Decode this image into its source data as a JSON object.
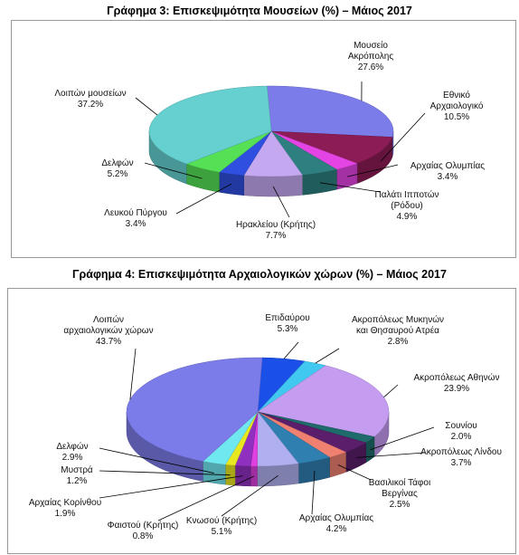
{
  "chart_data": [
    {
      "type": "pie",
      "title": "Γράφημα 3: Επισκεψιμότητα Μουσείων (%) – Μάιος  2017",
      "categories": [
        "Μουσείο\nΑκρόπολης",
        "Εθνικό\nΑρχαιολογικό",
        "Αρχαίας Ολυμπίας",
        "Παλάτι Ιπποτών\n(Ρόδου)",
        "Ηρακλείου (Κρήτης)",
        "Λευκού Πύργου",
        "Δελφών",
        "Λοιπών μουσείων"
      ],
      "values": [
        27.6,
        10.5,
        3.4,
        4.9,
        7.7,
        3.4,
        5.2,
        37.2
      ],
      "value_labels": [
        "27.6%",
        "10.5%",
        "3.4%",
        "4.9%",
        "7.7%",
        "3.4%",
        "5.2%",
        "37.2%"
      ],
      "colors": [
        "#7b7bea",
        "#8b1c55",
        "#e444e4",
        "#2e8080",
        "#c4a8f0",
        "#2f4fe0",
        "#55e055",
        "#66d0d0"
      ]
    },
    {
      "type": "pie",
      "title": "Γράφημα 4: Επισκεψιμότητα Αρχαιολογικών χώρων (%) – Μάιος 2017",
      "categories": [
        "Επιδαύρου",
        "Ακροπόλεως Μυκηνών\nκαι Θησαυρού Ατρέα",
        "Ακροπόλεως Αθηνών",
        "Σουνίου",
        "Ακροπόλεως Λίνδου",
        "Βασιλικοί Τάφοι\nΒεργίνας",
        "Αρχαίας Ολυμπίας",
        "Κνωσού (Κρήτης)",
        "Φαιστού (Κρήτης)",
        "Αρχαίας Κορίνθου",
        "Μυστρά",
        "Δελφών",
        "Λοιπών\nαρχαιολογικών χώρων"
      ],
      "values": [
        5.3,
        2.8,
        23.9,
        2.0,
        3.7,
        2.5,
        4.2,
        5.1,
        0.8,
        1.9,
        1.2,
        2.9,
        43.7
      ],
      "value_labels": [
        "5.3%",
        "2.8%",
        "23.9%",
        "2.0%",
        "3.7%",
        "2.5%",
        "4.2%",
        "5.1%",
        "0.8%",
        "1.9%",
        "1.2%",
        "2.9%",
        "43.7%"
      ],
      "colors": [
        "#1a4fe8",
        "#40c8f0",
        "#c49cf0",
        "#1f6b6b",
        "#5a1e6b",
        "#f08070",
        "#2f7fb0",
        "#b0b0f0",
        "#e040e0",
        "#9030c0",
        "#e8e820",
        "#70e8f0",
        "#7b7bea"
      ]
    }
  ]
}
